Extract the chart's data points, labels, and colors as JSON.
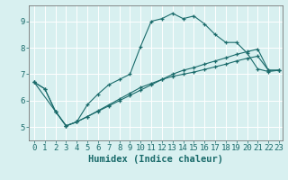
{
  "xlabel": "Humidex (Indice chaleur)",
  "bg_color": "#d8f0f0",
  "line_color": "#1a6b6b",
  "grid_color": "#ffffff",
  "xlim": [
    -0.5,
    23.3
  ],
  "ylim": [
    4.5,
    9.6
  ],
  "yticks": [
    5,
    6,
    7,
    8,
    9
  ],
  "xticks": [
    0,
    1,
    2,
    3,
    4,
    5,
    6,
    7,
    8,
    9,
    10,
    11,
    12,
    13,
    14,
    15,
    16,
    17,
    18,
    19,
    20,
    21,
    22,
    23
  ],
  "series1_x": [
    0,
    1,
    2,
    3,
    4,
    5,
    6,
    7,
    8,
    9,
    10,
    11,
    12,
    13,
    14,
    15,
    16,
    17,
    18,
    19,
    20,
    21,
    22,
    23
  ],
  "series1_y": [
    6.7,
    6.45,
    5.6,
    5.05,
    5.2,
    5.85,
    6.25,
    6.6,
    6.8,
    7.0,
    8.05,
    9.0,
    9.1,
    9.3,
    9.1,
    9.2,
    8.9,
    8.5,
    8.2,
    8.2,
    7.8,
    7.2,
    7.1,
    7.15
  ],
  "series2_x": [
    0,
    2,
    3,
    4,
    5,
    6,
    7,
    8,
    9,
    10,
    11,
    12,
    13,
    14,
    15,
    16,
    17,
    18,
    19,
    20,
    21,
    22,
    23
  ],
  "series2_y": [
    6.7,
    5.6,
    5.05,
    5.2,
    5.4,
    5.6,
    5.8,
    6.0,
    6.2,
    6.4,
    6.6,
    6.8,
    7.0,
    7.15,
    7.25,
    7.38,
    7.5,
    7.62,
    7.75,
    7.85,
    7.95,
    7.15,
    7.15
  ],
  "series3_x": [
    0,
    1,
    2,
    3,
    4,
    5,
    6,
    7,
    8,
    9,
    10,
    11,
    12,
    13,
    14,
    15,
    16,
    17,
    18,
    19,
    20,
    21,
    22,
    23
  ],
  "series3_y": [
    6.7,
    6.45,
    5.6,
    5.05,
    5.2,
    5.4,
    5.62,
    5.84,
    6.06,
    6.28,
    6.5,
    6.65,
    6.8,
    6.92,
    7.0,
    7.08,
    7.18,
    7.28,
    7.38,
    7.5,
    7.6,
    7.68,
    7.15,
    7.15
  ],
  "tick_fontsize": 6.5,
  "label_fontsize": 7.5
}
